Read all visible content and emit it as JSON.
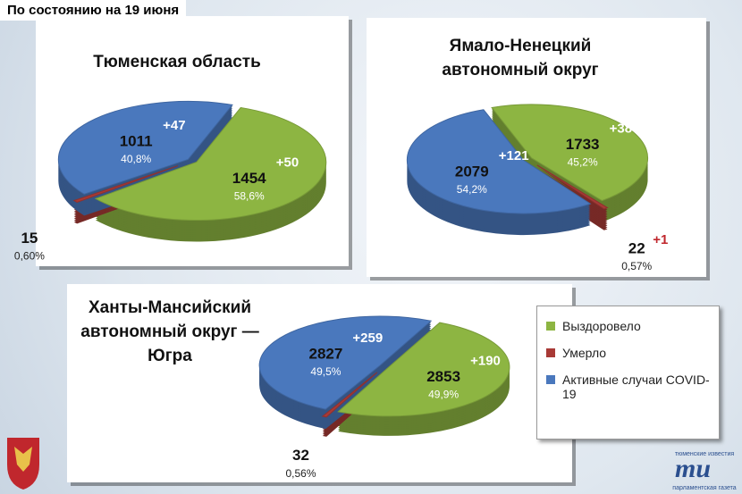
{
  "header": "По состоянию на 19 июня",
  "legend": [
    {
      "label": "Выздоровело",
      "color": "#8db542"
    },
    {
      "label": "Умерло",
      "color": "#a83a36"
    },
    {
      "label": "Активные случаи COVID-19",
      "color": "#4a78bd"
    }
  ],
  "publisher": {
    "top": "тюменские известия",
    "mark": "ти",
    "bottom": "парламентская газета"
  },
  "chart_data": [
    {
      "type": "pie",
      "title": [
        "Тюменская область"
      ],
      "values": [
        1454,
        15,
        1011
      ],
      "shares": [
        "58,6%",
        "0,60%",
        "40,8%"
      ],
      "changes": [
        "+50",
        null,
        "+47"
      ]
    },
    {
      "type": "pie",
      "title": [
        "Ямало-Ненецкий",
        "автономный округ"
      ],
      "values": [
        1733,
        22,
        2079
      ],
      "shares": [
        "45,2%",
        "0,57%",
        "54,2%"
      ],
      "changes": [
        "+38",
        "+1",
        "+121"
      ]
    },
    {
      "type": "pie",
      "title": [
        "Ханты-Мансийский",
        "автономный округ —",
        "Югра"
      ],
      "values": [
        2853,
        32,
        2827
      ],
      "shares": [
        "49,9%",
        "0,56%",
        "49,5%"
      ],
      "changes": [
        "+190",
        null,
        "+259"
      ]
    }
  ]
}
